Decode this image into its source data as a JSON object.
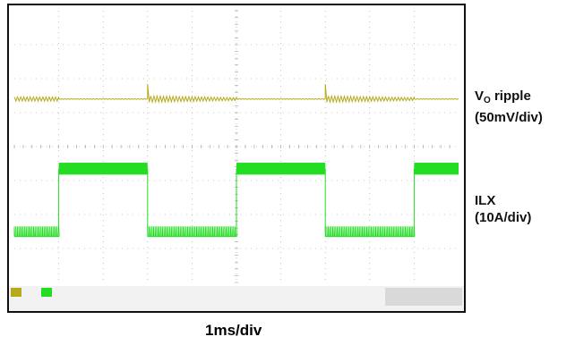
{
  "chart_data": {
    "type": "line",
    "title": "",
    "xlabel": "1ms/div",
    "divisions": {
      "x": 10,
      "y": 8
    },
    "grid": true,
    "series": [
      {
        "name": "VO ripple",
        "label_main": "V",
        "label_sub": "O",
        "label_rest": " ripple",
        "scale": "(50mV/div)",
        "color": "#b5aa1c",
        "segments": [
          {
            "x_start": 0.0,
            "x_end": 1.0,
            "level_div": 2.6,
            "ripple_div": 0.12,
            "type": "ripple"
          },
          {
            "x_start": 1.0,
            "x_end": 3.0,
            "level_div": 2.6,
            "ripple_div": 0.02,
            "type": "flat"
          },
          {
            "x_start": 3.0,
            "x_end": 5.0,
            "level_div": 2.6,
            "ripple_div": 0.14,
            "type": "ripple_decay"
          },
          {
            "x_start": 5.0,
            "x_end": 7.0,
            "level_div": 2.6,
            "ripple_div": 0.02,
            "type": "flat"
          },
          {
            "x_start": 7.0,
            "x_end": 9.0,
            "level_div": 2.6,
            "ripple_div": 0.14,
            "type": "ripple_decay"
          },
          {
            "x_start": 9.0,
            "x_end": 10.0,
            "level_div": 2.6,
            "ripple_div": 0.02,
            "type": "flat"
          }
        ]
      },
      {
        "name": "ILX",
        "label_main": "ILX",
        "scale": "(10A/div)",
        "color": "#22dd22",
        "segments": [
          {
            "x_start": 0.0,
            "x_end": 1.0,
            "level_div": 6.5,
            "ripple_div": 0.3,
            "type": "pulses"
          },
          {
            "x_start": 1.0,
            "x_end": 3.0,
            "level_div": 4.65,
            "ripple_div": 0.35,
            "type": "band"
          },
          {
            "x_start": 3.0,
            "x_end": 5.0,
            "level_div": 6.5,
            "ripple_div": 0.3,
            "type": "pulses"
          },
          {
            "x_start": 5.0,
            "x_end": 7.0,
            "level_div": 4.65,
            "ripple_div": 0.35,
            "type": "band"
          },
          {
            "x_start": 7.0,
            "x_end": 9.0,
            "level_div": 6.5,
            "ripple_div": 0.3,
            "type": "pulses"
          },
          {
            "x_start": 9.0,
            "x_end": 10.0,
            "level_div": 4.65,
            "ripple_div": 0.35,
            "type": "band"
          }
        ]
      }
    ]
  },
  "labels": {
    "timebase": "1ms/div"
  }
}
